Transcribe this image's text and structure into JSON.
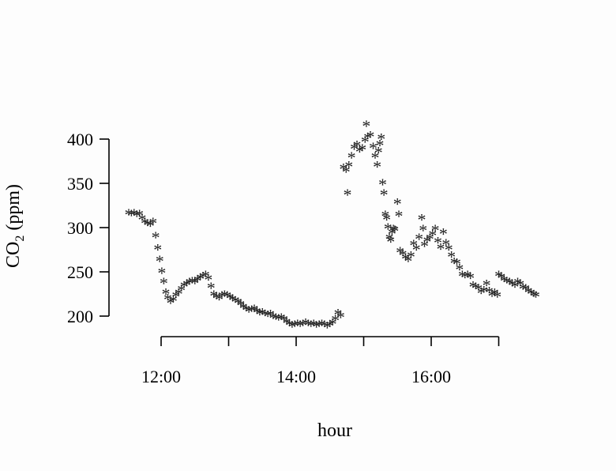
{
  "chart_data": {
    "type": "scatter",
    "marker": "*",
    "xlabel": "hour",
    "ylabel": "CO",
    "ylabel_subscript": "2",
    "ylabel_suffix": " (ppm)",
    "xlim": [
      11.5,
      17.6
    ],
    "ylim": [
      200,
      400
    ],
    "x_ticks": [
      12,
      13,
      14,
      15,
      16,
      17
    ],
    "x_tick_labels": [
      {
        "value": 12,
        "label": "12:00"
      },
      {
        "value": 14,
        "label": "14:00"
      },
      {
        "value": 16,
        "label": "16:00"
      }
    ],
    "y_ticks": [
      200,
      250,
      300,
      350,
      400
    ],
    "y_tick_labels": [
      "200",
      "250",
      "300",
      "350",
      "400"
    ],
    "grid": false,
    "points": [
      [
        11.52,
        318
      ],
      [
        11.56,
        317
      ],
      [
        11.6,
        318
      ],
      [
        11.64,
        316
      ],
      [
        11.68,
        317
      ],
      [
        11.72,
        312
      ],
      [
        11.76,
        308
      ],
      [
        11.8,
        306
      ],
      [
        11.84,
        305
      ],
      [
        11.88,
        308
      ],
      [
        11.92,
        292
      ],
      [
        11.95,
        278
      ],
      [
        11.98,
        265
      ],
      [
        12.01,
        252
      ],
      [
        12.04,
        240
      ],
      [
        12.07,
        228
      ],
      [
        12.1,
        222
      ],
      [
        12.14,
        218
      ],
      [
        12.18,
        220
      ],
      [
        12.22,
        225
      ],
      [
        12.26,
        228
      ],
      [
        12.3,
        232
      ],
      [
        12.34,
        236
      ],
      [
        12.38,
        238
      ],
      [
        12.42,
        240
      ],
      [
        12.46,
        241
      ],
      [
        12.5,
        240
      ],
      [
        12.54,
        243
      ],
      [
        12.58,
        245
      ],
      [
        12.62,
        247
      ],
      [
        12.66,
        248
      ],
      [
        12.7,
        244
      ],
      [
        12.74,
        235
      ],
      [
        12.78,
        226
      ],
      [
        12.82,
        223
      ],
      [
        12.86,
        222
      ],
      [
        12.9,
        225
      ],
      [
        12.94,
        226
      ],
      [
        12.98,
        225
      ],
      [
        13.02,
        223
      ],
      [
        13.06,
        221
      ],
      [
        13.1,
        219
      ],
      [
        13.14,
        218
      ],
      [
        13.18,
        215
      ],
      [
        13.22,
        212
      ],
      [
        13.26,
        210
      ],
      [
        13.3,
        208
      ],
      [
        13.34,
        209
      ],
      [
        13.38,
        210
      ],
      [
        13.42,
        207
      ],
      [
        13.46,
        205
      ],
      [
        13.5,
        206
      ],
      [
        13.54,
        204
      ],
      [
        13.58,
        203
      ],
      [
        13.62,
        204
      ],
      [
        13.66,
        201
      ],
      [
        13.7,
        200
      ],
      [
        13.74,
        199
      ],
      [
        13.78,
        200
      ],
      [
        13.82,
        198
      ],
      [
        13.86,
        195
      ],
      [
        13.9,
        193
      ],
      [
        13.94,
        191
      ],
      [
        13.98,
        192
      ],
      [
        14.02,
        193
      ],
      [
        14.06,
        192
      ],
      [
        14.1,
        193
      ],
      [
        14.14,
        194
      ],
      [
        14.18,
        193
      ],
      [
        14.22,
        192
      ],
      [
        14.26,
        193
      ],
      [
        14.3,
        191
      ],
      [
        14.34,
        192
      ],
      [
        14.38,
        193
      ],
      [
        14.42,
        192
      ],
      [
        14.46,
        190
      ],
      [
        14.5,
        192
      ],
      [
        14.54,
        194
      ],
      [
        14.58,
        198
      ],
      [
        14.62,
        205
      ],
      [
        14.66,
        202
      ],
      [
        14.7,
        369
      ],
      [
        14.74,
        366
      ],
      [
        14.76,
        340
      ],
      [
        14.78,
        372
      ],
      [
        14.82,
        382
      ],
      [
        14.86,
        392
      ],
      [
        14.9,
        395
      ],
      [
        14.94,
        389
      ],
      [
        14.98,
        391
      ],
      [
        15.02,
        400
      ],
      [
        15.04,
        418
      ],
      [
        15.06,
        404
      ],
      [
        15.1,
        406
      ],
      [
        15.14,
        393
      ],
      [
        15.17,
        382
      ],
      [
        15.2,
        372
      ],
      [
        15.22,
        388
      ],
      [
        15.24,
        396
      ],
      [
        15.26,
        403
      ],
      [
        15.28,
        352
      ],
      [
        15.3,
        340
      ],
      [
        15.32,
        316
      ],
      [
        15.34,
        312
      ],
      [
        15.36,
        302
      ],
      [
        15.38,
        290
      ],
      [
        15.4,
        287
      ],
      [
        15.42,
        296
      ],
      [
        15.44,
        300
      ],
      [
        15.46,
        299
      ],
      [
        15.5,
        330
      ],
      [
        15.52,
        316
      ],
      [
        15.54,
        275
      ],
      [
        15.58,
        272
      ],
      [
        15.62,
        268
      ],
      [
        15.66,
        265
      ],
      [
        15.7,
        270
      ],
      [
        15.74,
        283
      ],
      [
        15.78,
        278
      ],
      [
        15.82,
        290
      ],
      [
        15.86,
        312
      ],
      [
        15.88,
        300
      ],
      [
        15.9,
        282
      ],
      [
        15.94,
        287
      ],
      [
        15.98,
        290
      ],
      [
        16.02,
        294
      ],
      [
        16.06,
        300
      ],
      [
        16.1,
        286
      ],
      [
        16.14,
        279
      ],
      [
        16.18,
        296
      ],
      [
        16.22,
        284
      ],
      [
        16.26,
        278
      ],
      [
        16.3,
        270
      ],
      [
        16.34,
        263
      ],
      [
        16.38,
        262
      ],
      [
        16.42,
        256
      ],
      [
        16.46,
        248
      ],
      [
        16.5,
        247
      ],
      [
        16.54,
        248
      ],
      [
        16.58,
        246
      ],
      [
        16.62,
        236
      ],
      [
        16.66,
        235
      ],
      [
        16.7,
        233
      ],
      [
        16.74,
        229
      ],
      [
        16.78,
        231
      ],
      [
        16.82,
        238
      ],
      [
        16.86,
        230
      ],
      [
        16.9,
        226
      ],
      [
        16.94,
        228
      ],
      [
        16.98,
        225
      ],
      [
        17.0,
        248
      ],
      [
        17.04,
        246
      ],
      [
        17.08,
        243
      ],
      [
        17.12,
        241
      ],
      [
        17.16,
        240
      ],
      [
        17.2,
        238
      ],
      [
        17.24,
        236
      ],
      [
        17.28,
        240
      ],
      [
        17.32,
        238
      ],
      [
        17.36,
        234
      ],
      [
        17.4,
        233
      ],
      [
        17.44,
        230
      ],
      [
        17.48,
        228
      ],
      [
        17.52,
        226
      ],
      [
        17.55,
        225
      ]
    ]
  }
}
